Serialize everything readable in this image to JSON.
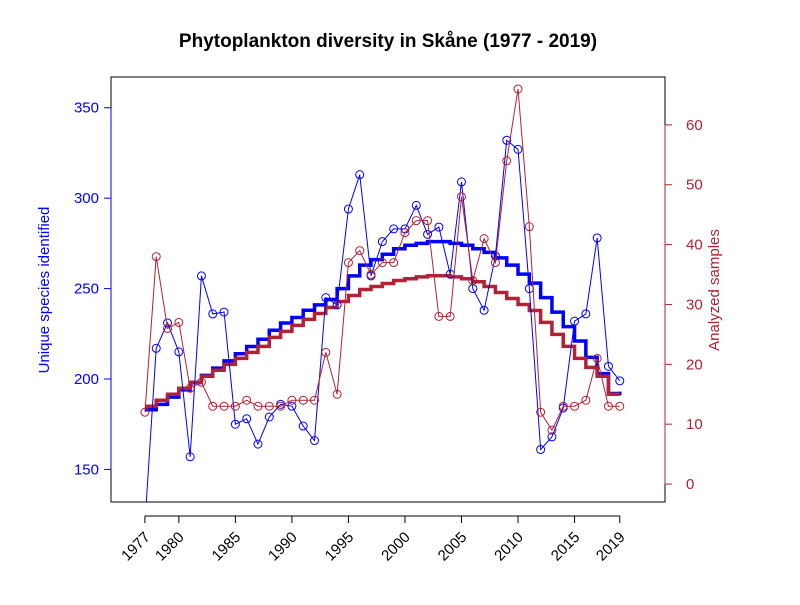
{
  "chart_data": {
    "type": "line",
    "title": "Phytoplankton diversity in Skåne (1977 - 2019)",
    "ylabel_left": "Unique species identified",
    "ylabel_right": "Analyzed samples",
    "xlim": [
      1974,
      2023
    ],
    "ylim_left": [
      132,
      367
    ],
    "ylim_right": [
      -3,
      68
    ],
    "x_ticks": [
      1977,
      1980,
      1985,
      1990,
      1995,
      2000,
      2005,
      2010,
      2015,
      2019
    ],
    "y_ticks_left": [
      150,
      200,
      250,
      300,
      350
    ],
    "y_ticks_right": [
      0,
      10,
      20,
      30,
      40,
      50,
      60
    ],
    "grid": false,
    "years": [
      1977,
      1978,
      1979,
      1980,
      1981,
      1982,
      1983,
      1984,
      1985,
      1986,
      1987,
      1988,
      1989,
      1990,
      1991,
      1992,
      1993,
      1994,
      1995,
      1996,
      1997,
      1998,
      1999,
      2000,
      2001,
      2002,
      2003,
      2004,
      2005,
      2006,
      2007,
      2008,
      2009,
      2010,
      2011,
      2012,
      2013,
      2014,
      2015,
      2016,
      2017,
      2018,
      2019
    ],
    "series": [
      {
        "axis": "left",
        "color": "#0000ff",
        "values": [
          120,
          217,
          231,
          215,
          157,
          257,
          236,
          237,
          175,
          178,
          164,
          179,
          186,
          185,
          174,
          166,
          245,
          241,
          294,
          313,
          257,
          276,
          283,
          283,
          296,
          280,
          284,
          258,
          309,
          250,
          238,
          268,
          332,
          327,
          250,
          161,
          168,
          184,
          232,
          236,
          278,
          207,
          199
        ]
      },
      {
        "axis": "right",
        "color": "#b22234",
        "values": [
          12,
          38,
          26,
          27,
          16,
          17,
          13,
          13,
          13,
          14,
          13,
          13,
          13,
          14,
          14,
          14,
          22,
          15,
          37,
          39,
          35,
          37,
          37,
          42,
          44,
          44,
          28,
          28,
          48,
          34,
          41,
          37,
          54,
          66,
          43,
          12,
          9,
          13,
          13,
          14,
          21,
          13,
          13
        ]
      }
    ],
    "fits": [
      {
        "axis": "left",
        "color": "#0000ff",
        "values": [
          183,
          186,
          190,
          194,
          198,
          202,
          206,
          210,
          214,
          218,
          222,
          227,
          231,
          234,
          238,
          241,
          244,
          250,
          257,
          263,
          266,
          269,
          272,
          274,
          275,
          276,
          276,
          275,
          274,
          272,
          270,
          267,
          263,
          258,
          253,
          245,
          237,
          229,
          221,
          212,
          203,
          192,
          193
        ]
      },
      {
        "axis": "right",
        "color": "#b22234",
        "values": [
          13,
          14,
          15,
          16,
          17,
          18,
          19,
          20,
          21,
          22,
          23,
          24.5,
          25.5,
          26.5,
          27.5,
          28.5,
          29.5,
          30.5,
          31.5,
          32.5,
          33,
          33.5,
          34,
          34.3,
          34.6,
          34.8,
          34.8,
          34.6,
          34.3,
          33.8,
          33,
          32,
          31,
          30,
          29,
          27,
          25,
          23,
          21,
          19.5,
          18,
          15,
          15
        ]
      }
    ]
  }
}
